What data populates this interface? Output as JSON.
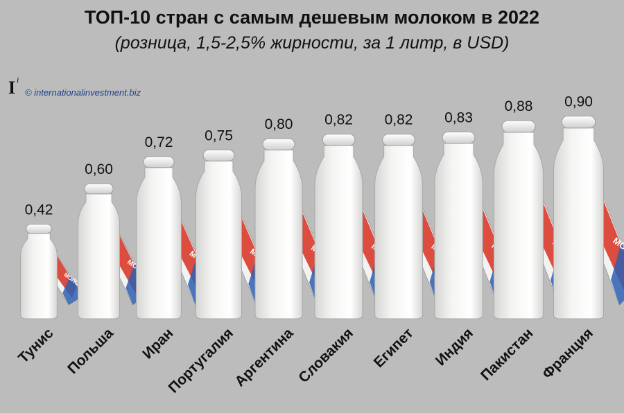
{
  "chart_data": {
    "type": "bar",
    "title": "ТОП-10 стран с самым дешевым молоком в 2022",
    "subtitle": "(розница, 1,5-2,5% жирности, за 1 литр, в USD)",
    "categories": [
      "Тунис",
      "Польша",
      "Иран",
      "Португалия",
      "Аргентина",
      "Словакия",
      "Египет",
      "Индия",
      "Пакистан",
      "Франция"
    ],
    "values": [
      0.42,
      0.6,
      0.72,
      0.75,
      0.8,
      0.82,
      0.82,
      0.83,
      0.88,
      0.9
    ],
    "value_labels": [
      "0,42",
      "0,60",
      "0,72",
      "0,75",
      "0,80",
      "0,82",
      "0,82",
      "0,83",
      "0,88",
      "0,90"
    ],
    "bar_style": "milk bottles with milk cartons",
    "carton_text": "МОЛОКО",
    "ylim": [
      0,
      1.0
    ],
    "grid": false,
    "legend": "none",
    "colors": {
      "background": "#bcbcbc",
      "bottle": "#f4f4f2",
      "bottle_shade": "#d6d6d4",
      "carton_red": "#d93a2b",
      "carton_blue": "#2d5fb3",
      "text": "#111111"
    }
  },
  "header": {
    "logo": "I",
    "logo_superscript": "i",
    "copyright": "© internationalinvestment.biz"
  }
}
